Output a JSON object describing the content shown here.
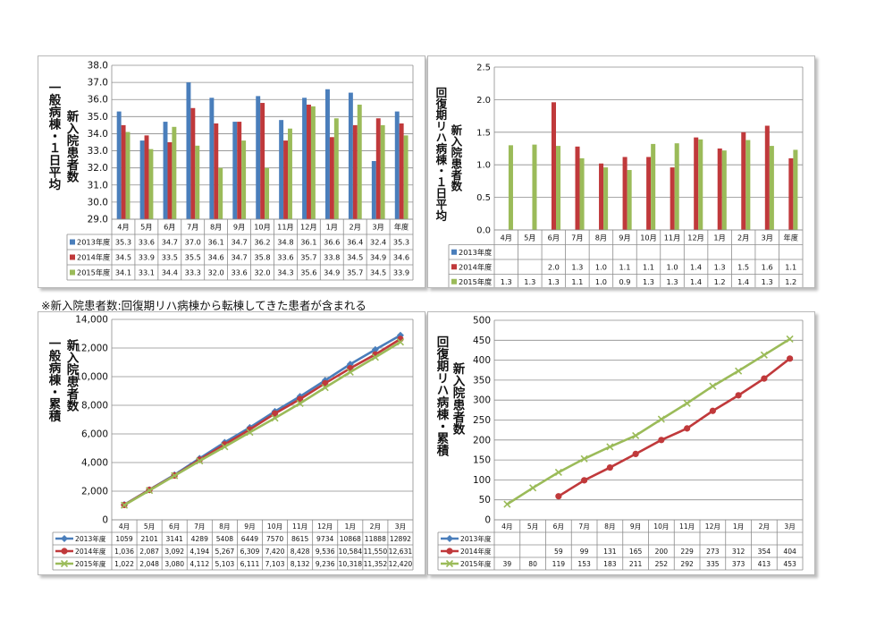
{
  "note": "※新入院患者数:回復期リハ病棟から転棟してきた患者が含まれる",
  "colors": {
    "2013": "#4a7ebb",
    "2014": "#c0393b",
    "2015": "#9bbb59"
  },
  "charts": [
    {
      "id": "c1",
      "ylabel_main": "一般病棟・１日平均",
      "ylabel_sub": "新入院患者数",
      "chart_data": {
        "type": "bar",
        "categories": [
          "4月",
          "5月",
          "6月",
          "7月",
          "8月",
          "9月",
          "10月",
          "11月",
          "12月",
          "1月",
          "2月",
          "3月",
          "年度"
        ],
        "ylim": [
          29.0,
          38.0
        ],
        "yticks": [
          "29.0",
          "30.0",
          "31.0",
          "32.0",
          "33.0",
          "34.0",
          "35.0",
          "36.0",
          "37.0",
          "38.0"
        ],
        "series": [
          {
            "name": "2013年度",
            "values": [
              35.3,
              33.6,
              34.7,
              37.0,
              36.1,
              34.7,
              36.2,
              34.8,
              36.1,
              36.6,
              36.4,
              32.4,
              35.3
            ],
            "labels": [
              "35.3",
              "33.6",
              "34.7",
              "37.0",
              "36.1",
              "34.7",
              "36.2",
              "34.8",
              "36.1",
              "36.6",
              "36.4",
              "32.4",
              "35.3"
            ]
          },
          {
            "name": "2014年度",
            "values": [
              34.5,
              33.9,
              33.5,
              35.5,
              34.6,
              34.7,
              35.8,
              33.6,
              35.7,
              33.8,
              34.5,
              34.9,
              34.6
            ],
            "labels": [
              "34.5",
              "33.9",
              "33.5",
              "35.5",
              "34.6",
              "34.7",
              "35.8",
              "33.6",
              "35.7",
              "33.8",
              "34.5",
              "34.9",
              "34.6"
            ]
          },
          {
            "name": "2015年度",
            "values": [
              34.1,
              33.1,
              34.4,
              33.3,
              32.0,
              33.6,
              32.0,
              34.3,
              35.6,
              34.9,
              35.7,
              34.5,
              33.9
            ],
            "labels": [
              "34.1",
              "33.1",
              "34.4",
              "33.3",
              "32.0",
              "33.6",
              "32.0",
              "34.3",
              "35.6",
              "34.9",
              "35.7",
              "34.5",
              "33.9"
            ]
          }
        ]
      }
    },
    {
      "id": "c2",
      "ylabel_main": "回復期リハ病棟・１日平均",
      "ylabel_sub": "新入院患者数",
      "chart_data": {
        "type": "bar",
        "categories": [
          "4月",
          "5月",
          "6月",
          "7月",
          "8月",
          "9月",
          "10月",
          "11月",
          "12月",
          "1月",
          "2月",
          "3月",
          "年度"
        ],
        "ylim": [
          0.0,
          2.5
        ],
        "yticks": [
          "0.0",
          "0.5",
          "1.0",
          "1.5",
          "2.0",
          "2.5"
        ],
        "series": [
          {
            "name": "2013年度",
            "values": [
              null,
              null,
              null,
              null,
              null,
              null,
              null,
              null,
              null,
              null,
              null,
              null,
              null
            ],
            "labels": [
              "",
              "",
              "",
              "",
              "",
              "",
              "",
              "",
              "",
              "",
              "",
              "",
              ""
            ]
          },
          {
            "name": "2014年度",
            "values": [
              null,
              null,
              1.96,
              1.28,
              1.02,
              1.12,
              1.12,
              0.96,
              1.42,
              1.25,
              1.5,
              1.6,
              1.1
            ],
            "labels": [
              "",
              "",
              "2.0",
              "1.3",
              "1.0",
              "1.1",
              "1.1",
              "1.0",
              "1.4",
              "1.3",
              "1.5",
              "1.6",
              "1.1"
            ]
          },
          {
            "name": "2015年度",
            "values": [
              1.3,
              1.31,
              1.29,
              1.1,
              0.96,
              0.92,
              1.32,
              1.33,
              1.39,
              1.22,
              1.38,
              1.29,
              1.23
            ],
            "labels": [
              "1.3",
              "1.3",
              "1.3",
              "1.1",
              "1.0",
              "0.9",
              "1.3",
              "1.3",
              "1.4",
              "1.2",
              "1.4",
              "1.3",
              "1.2"
            ]
          }
        ]
      }
    },
    {
      "id": "c3",
      "ylabel_main": "一般病棟・累積",
      "ylabel_sub": "新入院患者数",
      "chart_data": {
        "type": "line",
        "categories": [
          "4月",
          "5月",
          "6月",
          "7月",
          "8月",
          "9月",
          "10月",
          "11月",
          "12月",
          "1月",
          "2月",
          "3月"
        ],
        "ylim": [
          0,
          14000
        ],
        "yticks": [
          "0",
          "2,000",
          "4,000",
          "6,000",
          "8,000",
          "10,000",
          "12,000",
          "14,000"
        ],
        "series": [
          {
            "name": "2013年度",
            "marker": "diamond",
            "values": [
              1059,
              2101,
              3141,
              4289,
              5408,
              6449,
              7570,
              8615,
              9734,
              10868,
              11888,
              12892
            ],
            "labels": [
              "1059",
              "2101",
              "3141",
              "4289",
              "5408",
              "6449",
              "7570",
              "8615",
              "9734",
              "10868",
              "11888",
              "12892"
            ]
          },
          {
            "name": "2014年度",
            "marker": "circle",
            "values": [
              1036,
              2087,
              3092,
              4194,
              5267,
              6309,
              7420,
              8428,
              9536,
              10584,
              11550,
              12631
            ],
            "labels": [
              "1,036",
              "2,087",
              "3,092",
              "4,194",
              "5,267",
              "6,309",
              "7,420",
              "8,428",
              "9,536",
              "10,584",
              "11,550",
              "12,631"
            ]
          },
          {
            "name": "2015年度",
            "marker": "x",
            "values": [
              1022,
              2048,
              3080,
              4112,
              5103,
              6111,
              7103,
              8132,
              9236,
              10318,
              11352,
              12420
            ],
            "labels": [
              "1,022",
              "2,048",
              "3,080",
              "4,112",
              "5,103",
              "6,111",
              "7,103",
              "8,132",
              "9,236",
              "10,318",
              "11,352",
              "12,420"
            ]
          }
        ]
      }
    },
    {
      "id": "c4",
      "ylabel_main": "回復期リハ病棟・累積",
      "ylabel_sub": "新入院患者数",
      "chart_data": {
        "type": "line",
        "categories": [
          "4月",
          "5月",
          "6月",
          "7月",
          "8月",
          "9月",
          "10月",
          "11月",
          "12月",
          "1月",
          "2月",
          "3月"
        ],
        "ylim": [
          0,
          500
        ],
        "yticks": [
          "0",
          "50",
          "100",
          "150",
          "200",
          "250",
          "300",
          "350",
          "400",
          "450",
          "500"
        ],
        "series": [
          {
            "name": "2013年度",
            "marker": "diamond",
            "values": [
              null,
              null,
              null,
              null,
              null,
              null,
              null,
              null,
              null,
              null,
              null,
              null
            ],
            "labels": [
              "",
              "",
              "",
              "",
              "",
              "",
              "",
              "",
              "",
              "",
              "",
              ""
            ]
          },
          {
            "name": "2014年度",
            "marker": "circle",
            "values": [
              null,
              null,
              59,
              99,
              131,
              165,
              200,
              229,
              273,
              312,
              354,
              404
            ],
            "labels": [
              "",
              "",
              "59",
              "99",
              "131",
              "165",
              "200",
              "229",
              "273",
              "312",
              "354",
              "404"
            ]
          },
          {
            "name": "2015年度",
            "marker": "x",
            "values": [
              39,
              80,
              119,
              153,
              183,
              211,
              252,
              292,
              335,
              373,
              413,
              453
            ],
            "labels": [
              "39",
              "80",
              "119",
              "153",
              "183",
              "211",
              "252",
              "292",
              "335",
              "373",
              "413",
              "453"
            ]
          }
        ]
      }
    }
  ]
}
